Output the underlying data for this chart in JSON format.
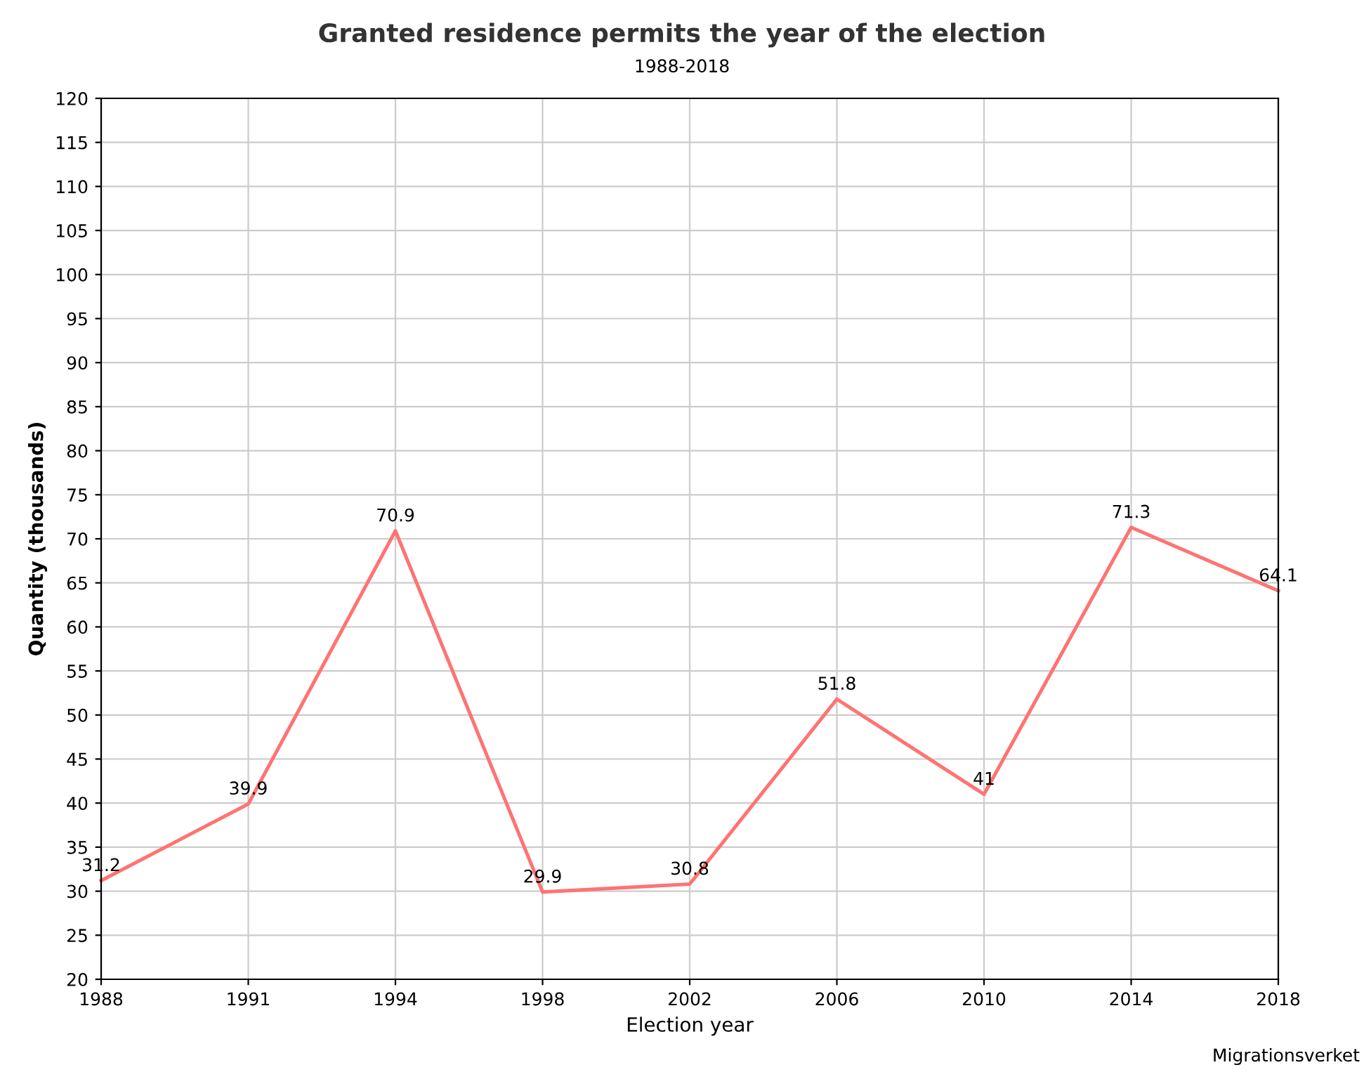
{
  "chart_data": {
    "type": "line",
    "title": "Granted residence permits the year of the election",
    "subtitle": "1988-2018",
    "xlabel": "Election year",
    "ylabel": "Quantity (thousands)",
    "categories": [
      "1988",
      "1991",
      "1994",
      "1998",
      "2002",
      "2006",
      "2010",
      "2014",
      "2018"
    ],
    "series": [
      {
        "color": "#ff7373",
        "values": [
          31.2,
          39.9,
          70.9,
          29.9,
          30.8,
          51.8,
          41,
          71.3,
          64.1
        ]
      }
    ],
    "ylim": [
      20,
      120
    ],
    "yticks": [
      20,
      25,
      30,
      35,
      40,
      45,
      50,
      55,
      60,
      65,
      70,
      75,
      80,
      85,
      90,
      95,
      100,
      105,
      110,
      115,
      120
    ],
    "grid": true,
    "data_labels": true,
    "marker": "none",
    "line_style": "solid",
    "legend": false,
    "annotations": [
      "Migrationsverket"
    ]
  }
}
